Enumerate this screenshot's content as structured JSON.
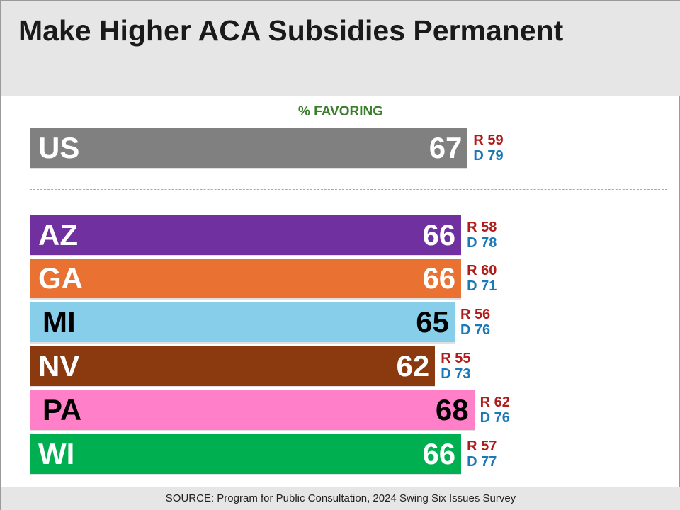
{
  "title": "Make Higher ACA Subsidies Permanent",
  "source": "SOURCE: Program for Public Consultation, 2024 Swing Six Issues Survey",
  "chart_data": {
    "type": "bar",
    "orientation": "horizontal",
    "title": "Make Higher ACA Subsidies Permanent",
    "subtitle": "% FAVORING",
    "xlim": [
      0,
      100
    ],
    "grid": false,
    "categories": [
      "US",
      "AZ",
      "GA",
      "MI",
      "NV",
      "PA",
      "WI"
    ],
    "values": [
      67,
      66,
      66,
      65,
      62,
      68,
      66
    ],
    "republican": [
      "R 59",
      "R 58",
      "R 60",
      "R 56",
      "R 55",
      "R 62",
      "R 57"
    ],
    "democrat": [
      "D 79",
      "D 78",
      "D 71",
      "D 76",
      "D 73",
      "D 76",
      "D 77"
    ],
    "colors": [
      "#808080",
      "#7030a0",
      "#e97132",
      "#87ceeb",
      "#8b3a0f",
      "#ff80c8",
      "#00b050"
    ],
    "text_colors": [
      "#ffffff",
      "#ffffff",
      "#ffffff",
      "#000000",
      "#ffffff",
      "#000000",
      "#ffffff"
    ]
  }
}
